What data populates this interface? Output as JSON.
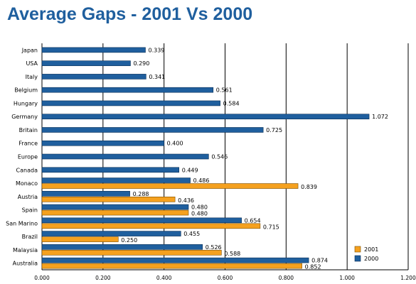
{
  "chart_data": {
    "type": "bar",
    "orientation": "horizontal",
    "title": "Average Gaps - 2001 Vs 2000",
    "categories": [
      "Japan",
      "USA",
      "Italy",
      "Belgium",
      "Hungary",
      "Germany",
      "Britain",
      "France",
      "Europe",
      "Canada",
      "Monaco",
      "Austria",
      "Spain",
      "San Marino",
      "Brazil",
      "Malaysia",
      "Australia"
    ],
    "series": [
      {
        "name": "2000",
        "color": "#1f5f9e",
        "values": [
          0.339,
          0.29,
          0.341,
          0.561,
          0.584,
          1.072,
          0.725,
          0.4,
          0.546,
          0.449,
          0.486,
          0.288,
          0.48,
          0.654,
          0.455,
          0.526,
          0.874
        ],
        "labels": [
          "0.339",
          "0.290",
          "0.341",
          "0.561",
          "0.584",
          "1.072",
          "0.725",
          "0.400",
          "0.546",
          "0.449",
          "0.486",
          "0.288",
          "0.480",
          "0.654",
          "0.455",
          "0.526",
          "0.874"
        ]
      },
      {
        "name": "2001",
        "color": "#f5a11f",
        "values": [
          null,
          null,
          null,
          null,
          null,
          null,
          null,
          null,
          null,
          null,
          0.839,
          0.436,
          0.48,
          0.715,
          0.25,
          0.588,
          0.852
        ],
        "labels": [
          "",
          "",
          "",
          "",
          "",
          "",
          "",
          "",
          "",
          "",
          "0.839",
          "0.436",
          "0.480",
          "0.715",
          "0.250",
          "0.588",
          "0.852"
        ]
      }
    ],
    "xlim": [
      0,
      1.2
    ],
    "xticks": [
      "0.000",
      "0.200",
      "0.400",
      "0.600",
      "0.800",
      "1.000",
      "1.200"
    ],
    "grid": true,
    "legend_position": "bottom-right",
    "legend": [
      "2001",
      "2000"
    ]
  }
}
